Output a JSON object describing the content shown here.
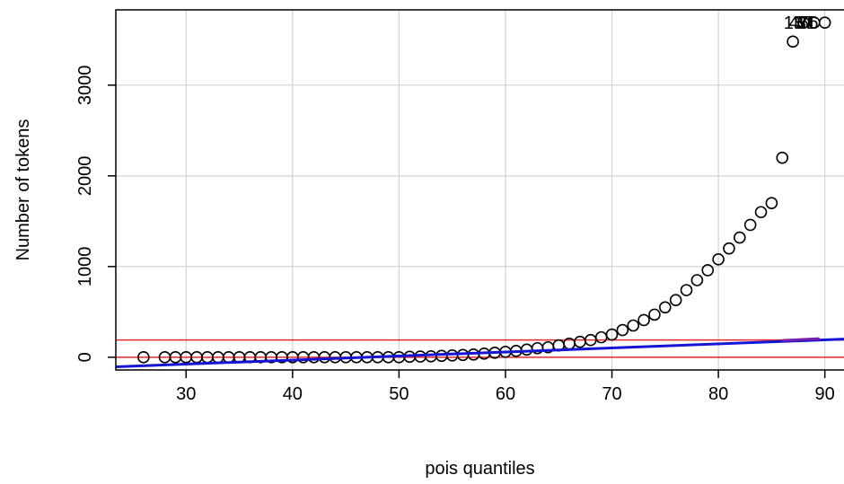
{
  "chart_data": {
    "type": "scatter",
    "title": "",
    "xlabel": "pois quantiles",
    "ylabel": "Number of tokens",
    "xlim": [
      23.4,
      91.8
    ],
    "ylim": [
      -140,
      3830
    ],
    "x_ticks": [
      30,
      40,
      50,
      60,
      70,
      80,
      90
    ],
    "y_ticks": [
      0,
      1000,
      2000,
      3000
    ],
    "x_tick_labels": [
      "30",
      "40",
      "50",
      "60",
      "70",
      "80",
      "90"
    ],
    "y_tick_labels": [
      "0",
      "1000",
      "2000",
      "3000"
    ],
    "grid": true,
    "legend": "none",
    "points": [
      [
        26,
        0
      ],
      [
        28,
        0
      ],
      [
        29,
        0
      ],
      [
        30,
        0
      ],
      [
        31,
        0
      ],
      [
        32,
        0
      ],
      [
        33,
        0
      ],
      [
        34,
        0
      ],
      [
        35,
        0
      ],
      [
        36,
        0
      ],
      [
        37,
        0
      ],
      [
        38,
        0
      ],
      [
        39,
        0
      ],
      [
        40,
        0
      ],
      [
        41,
        0
      ],
      [
        42,
        0
      ],
      [
        43,
        0
      ],
      [
        44,
        0
      ],
      [
        45,
        0
      ],
      [
        46,
        0
      ],
      [
        47,
        0
      ],
      [
        48,
        0
      ],
      [
        49,
        0
      ],
      [
        50,
        0
      ],
      [
        51,
        5
      ],
      [
        52,
        8
      ],
      [
        53,
        10
      ],
      [
        54,
        15
      ],
      [
        55,
        20
      ],
      [
        56,
        25
      ],
      [
        57,
        30
      ],
      [
        58,
        40
      ],
      [
        59,
        50
      ],
      [
        60,
        60
      ],
      [
        61,
        70
      ],
      [
        62,
        85
      ],
      [
        63,
        100
      ],
      [
        64,
        110
      ],
      [
        65,
        130
      ],
      [
        66,
        150
      ],
      [
        67,
        170
      ],
      [
        68,
        190
      ],
      [
        69,
        220
      ],
      [
        70,
        250
      ],
      [
        71,
        300
      ],
      [
        72,
        350
      ],
      [
        73,
        410
      ],
      [
        74,
        470
      ],
      [
        75,
        550
      ],
      [
        76,
        630
      ],
      [
        77,
        740
      ],
      [
        78,
        850
      ],
      [
        79,
        960
      ],
      [
        80,
        1080
      ],
      [
        81,
        1200
      ],
      [
        82,
        1320
      ],
      [
        83,
        1460
      ],
      [
        84,
        1600
      ],
      [
        85,
        1700
      ],
      [
        86,
        2200
      ],
      [
        87,
        3480
      ],
      [
        88,
        3690
      ],
      [
        89,
        3690
      ],
      [
        90,
        3690
      ]
    ],
    "reference_lines": {
      "horizontal_red": [
        0,
        190
      ],
      "blue_fit": {
        "from": [
          23.4,
          -105
        ],
        "to": [
          91.8,
          200
        ]
      }
    },
    "annotations": [
      {
        "text": "13",
        "x": 88.0,
        "y": 3690
      },
      {
        "text": "45",
        "x": 88.5,
        "y": 3690
      },
      {
        "text": "57",
        "x": 89.0,
        "y": 3690
      },
      {
        "text": "31",
        "x": 89.2,
        "y": 3690
      },
      {
        "text": "76",
        "x": 89.4,
        "y": 3690
      }
    ],
    "colors": {
      "points": "#000000",
      "horizontal_lines": "#e8282b",
      "fit_line": "#1414d6",
      "fit_line_accent": "#7a1faa",
      "grid": "#d3d3d3",
      "frame": "#000000"
    }
  }
}
